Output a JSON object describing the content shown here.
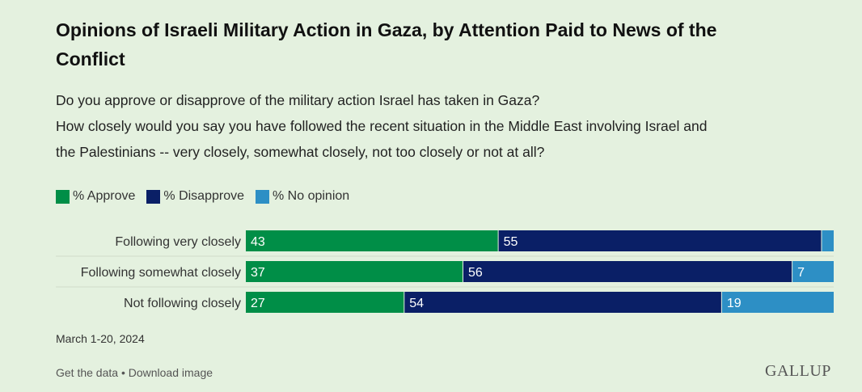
{
  "title": "Opinions of Israeli Military Action in Gaza, by Attention Paid to News of the Conflict",
  "subtitle_lines": [
    "Do you approve or disapprove of the military action Israel has taken in Gaza?",
    "How closely would you say you have followed the recent situation in the Middle East involving Israel and",
    "the Palestinians -- very closely, somewhat closely, not too closely or not at all?"
  ],
  "legend": [
    {
      "label": "% Approve",
      "color": "#008e47"
    },
    {
      "label": "% Disapprove",
      "color": "#0a1f66"
    },
    {
      "label": "% No opinion",
      "color": "#2d8fc5"
    }
  ],
  "chart_data": {
    "type": "bar",
    "orientation": "horizontal",
    "stacked": true,
    "categories": [
      "Following very closely",
      "Following somewhat closely",
      "Not following closely"
    ],
    "series": [
      {
        "name": "% Approve",
        "color": "#008e47",
        "values": [
          43,
          37,
          27
        ],
        "labels": [
          "43",
          "37",
          "27"
        ]
      },
      {
        "name": "% Disapprove",
        "color": "#0a1f66",
        "values": [
          55,
          56,
          54
        ],
        "labels": [
          "55",
          "56",
          "54"
        ]
      },
      {
        "name": "% No opinion",
        "color": "#2d8fc5",
        "values": [
          2,
          7,
          19
        ],
        "labels": [
          "",
          "7",
          "19"
        ]
      }
    ],
    "xlim": [
      0,
      100
    ],
    "legend_position": "top-left",
    "grid": false
  },
  "date_note": "March 1-20, 2024",
  "footer_links": "Get the data • Download image",
  "logo_text": "GALLUP"
}
